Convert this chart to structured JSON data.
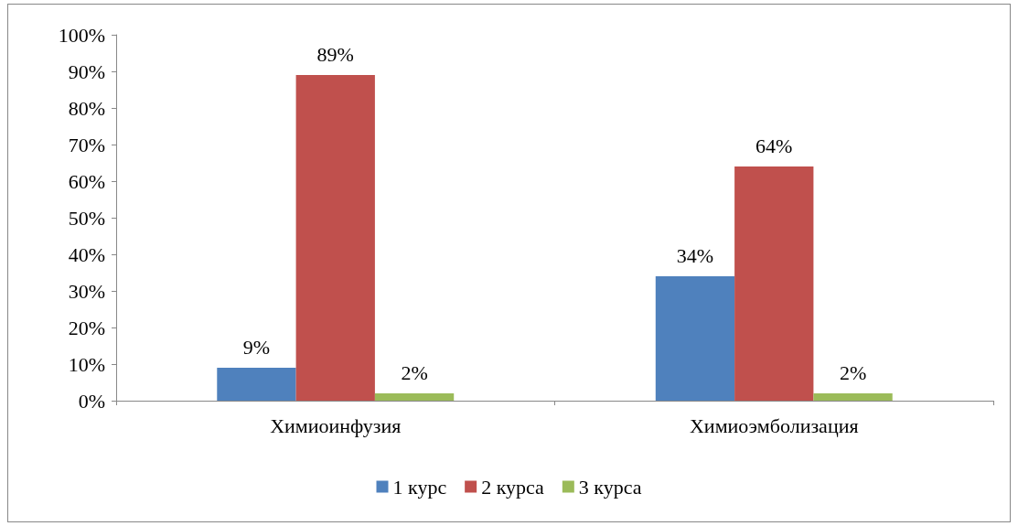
{
  "chart_data": {
    "type": "bar",
    "categories": [
      "Химиоинфузия",
      "Химиоэмболизация"
    ],
    "series": [
      {
        "name": "1 курс",
        "color": "#4f81bd",
        "values": [
          9,
          34
        ],
        "value_labels": [
          "9%",
          "34%"
        ]
      },
      {
        "name": "2 курса",
        "color": "#c0504d",
        "values": [
          89,
          64
        ],
        "value_labels": [
          "89%",
          "64%"
        ]
      },
      {
        "name": "3 курса",
        "color": "#9bbb59",
        "values": [
          2,
          2
        ],
        "value_labels": [
          "2%",
          "2%"
        ]
      }
    ],
    "ylim": [
      0,
      100
    ],
    "yticks": [
      {
        "value": 0,
        "label": "0%"
      },
      {
        "value": 10,
        "label": "10%"
      },
      {
        "value": 20,
        "label": "20%"
      },
      {
        "value": 30,
        "label": "30%"
      },
      {
        "value": 40,
        "label": "40%"
      },
      {
        "value": 50,
        "label": "50%"
      },
      {
        "value": 60,
        "label": "60%"
      },
      {
        "value": 70,
        "label": "70%"
      },
      {
        "value": 80,
        "label": "80%"
      },
      {
        "value": 90,
        "label": "90%"
      },
      {
        "value": 100,
        "label": "100%"
      }
    ],
    "grid": false,
    "legend": "bottom"
  }
}
